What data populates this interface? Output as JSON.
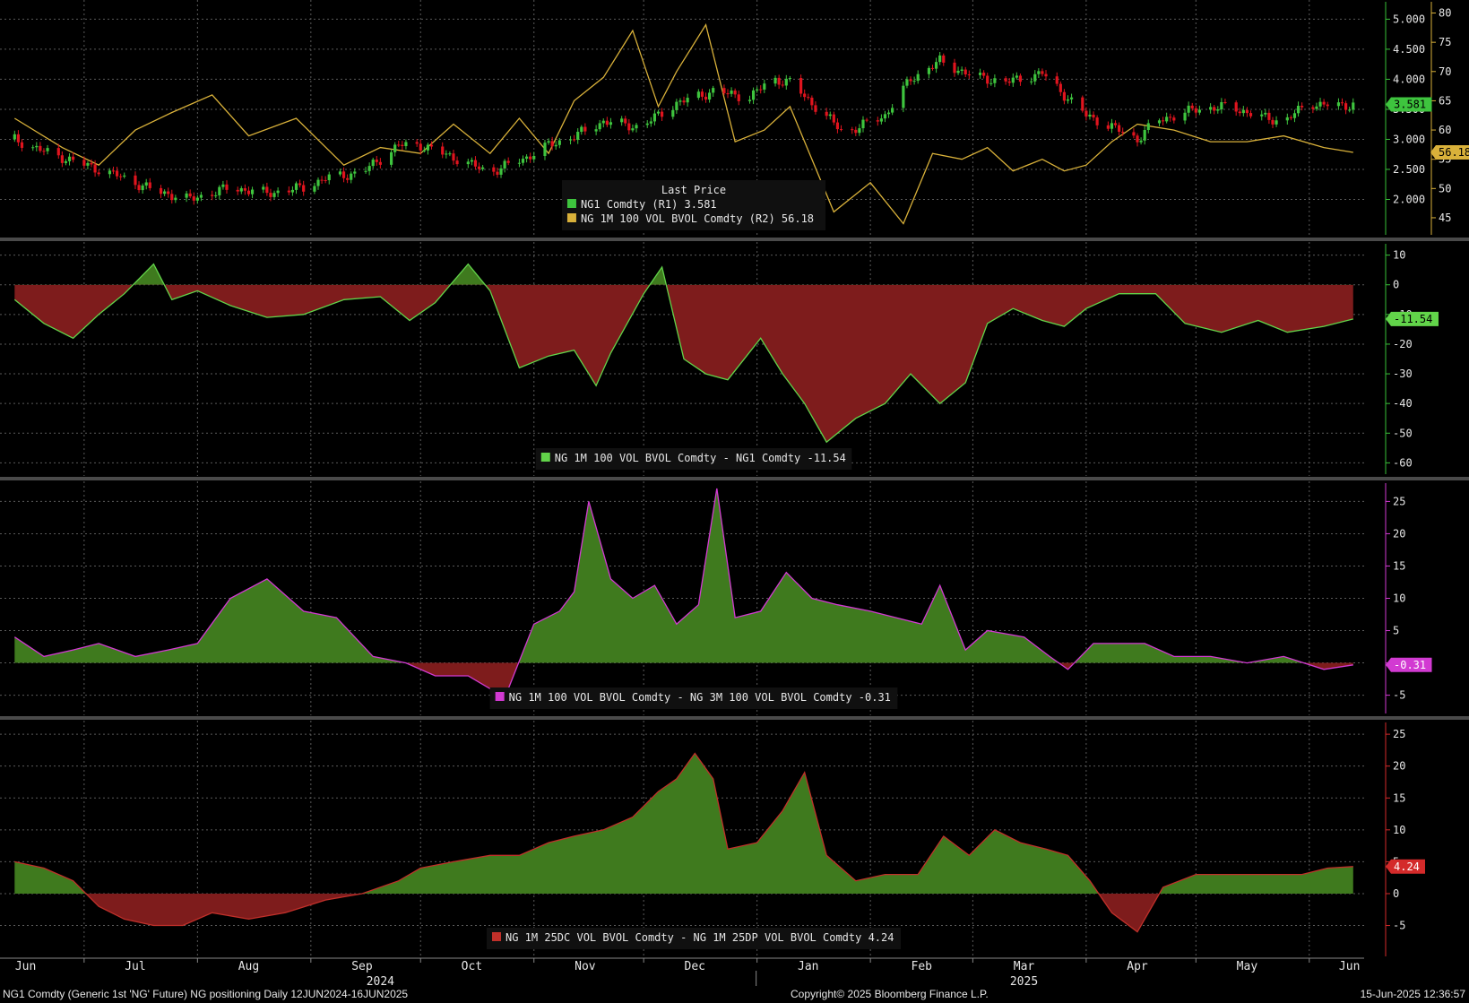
{
  "footer": {
    "left": "NG1 Comdty (Generic 1st 'NG' Future) NG positioning  Daily 12JUN2024-16JUN2025",
    "center": "Copyright© 2025 Bloomberg Finance L.P.",
    "right": "15-Jun-2025 12:36:57"
  },
  "colors": {
    "background": "#000000",
    "grid": "#5a5a5a",
    "candle_up": "#3ec43e",
    "candle_down": "#e0141e",
    "vol_line": "#d9b13a",
    "area_green": "#3f7a1e",
    "area_red": "#7e1c1c",
    "panel2_line": "#62d44a",
    "panel3_line": "#d23ad2",
    "panel4_line": "#c0302a",
    "axis_panel1": "#39c139",
    "axis_panel2": "#39c139",
    "axis_panel3": "#d23ad2",
    "axis_panel4": "#d42a2a"
  },
  "chart_data": [
    {
      "type": "line",
      "panel": "price",
      "legend_title": "Last Price",
      "legend_placement": "bottom-center",
      "grid": true,
      "series": [
        {
          "name": "NG1 Comdty  (R1)",
          "value_label": "3.581",
          "axis": "R1",
          "style": "candlestick",
          "x": [
            "2024-06-12",
            "2024-06-20",
            "2024-06-30",
            "2024-07-10",
            "2024-07-20",
            "2024-07-30",
            "2024-08-10",
            "2024-08-20",
            "2024-08-30",
            "2024-09-05",
            "2024-09-15",
            "2024-09-25",
            "2024-10-01",
            "2024-10-10",
            "2024-10-20",
            "2024-10-30",
            "2024-11-05",
            "2024-11-12",
            "2024-11-20",
            "2024-11-30",
            "2024-12-05",
            "2024-12-10",
            "2024-12-20",
            "2024-12-30",
            "2025-01-05",
            "2025-01-10",
            "2025-01-16",
            "2025-01-25",
            "2025-02-05",
            "2025-02-12",
            "2025-02-20",
            "2025-03-01",
            "2025-03-10",
            "2025-03-20",
            "2025-03-25",
            "2025-04-01",
            "2025-04-10",
            "2025-04-15",
            "2025-04-20",
            "2025-05-01",
            "2025-05-10",
            "2025-05-20",
            "2025-05-25",
            "2025-06-01",
            "2025-06-10",
            "2025-06-13"
          ],
          "y": [
            3.0,
            2.8,
            2.6,
            2.4,
            2.15,
            2.0,
            2.2,
            2.1,
            2.2,
            2.35,
            2.45,
            2.9,
            2.9,
            2.7,
            2.45,
            2.7,
            2.9,
            3.05,
            3.3,
            3.2,
            3.4,
            3.6,
            3.8,
            3.7,
            4.0,
            3.95,
            3.6,
            3.1,
            3.4,
            4.0,
            4.3,
            4.05,
            3.95,
            4.1,
            3.8,
            3.4,
            3.15,
            3.0,
            3.3,
            3.5,
            3.55,
            3.35,
            3.3,
            3.6,
            3.55,
            3.581
          ]
        },
        {
          "name": "NG 1M 100 VOL BVOL Comdty  (R2)",
          "value_label": "56.18",
          "axis": "R2",
          "x": [
            "2024-06-12",
            "2024-06-25",
            "2024-07-05",
            "2024-07-15",
            "2024-07-25",
            "2024-08-05",
            "2024-08-15",
            "2024-08-28",
            "2024-09-10",
            "2024-09-20",
            "2024-10-01",
            "2024-10-10",
            "2024-10-20",
            "2024-10-28",
            "2024-11-05",
            "2024-11-12",
            "2024-11-20",
            "2024-11-28",
            "2024-12-05",
            "2024-12-10",
            "2024-12-18",
            "2024-12-26",
            "2025-01-03",
            "2025-01-10",
            "2025-01-16",
            "2025-01-22",
            "2025-02-01",
            "2025-02-10",
            "2025-02-18",
            "2025-02-26",
            "2025-03-05",
            "2025-03-12",
            "2025-03-20",
            "2025-03-26",
            "2025-04-01",
            "2025-04-08",
            "2025-04-15",
            "2025-04-25",
            "2025-05-05",
            "2025-05-15",
            "2025-05-25",
            "2025-06-05",
            "2025-06-13"
          ],
          "y": [
            62,
            57,
            54,
            60,
            63,
            66,
            59,
            62,
            54,
            57,
            56,
            61,
            56,
            62,
            56,
            65,
            69,
            77,
            64,
            70,
            78,
            58,
            60,
            64,
            55,
            46,
            51,
            44,
            56,
            55,
            57,
            53,
            55,
            53,
            54,
            58,
            61,
            60,
            58,
            58,
            59,
            57,
            56.18
          ]
        }
      ],
      "R1": {
        "ylim": [
          1.5,
          5.2
        ],
        "ticks": [
          "2.000",
          "2.500",
          "3.000",
          "3.500",
          "4.000",
          "4.500",
          "5.000"
        ]
      },
      "R2": {
        "ylim": [
          43,
          81
        ],
        "ticks": [
          "45",
          "50",
          "55",
          "60",
          "65",
          "70",
          "75",
          "80"
        ]
      }
    },
    {
      "type": "area",
      "panel": "spread1",
      "grid": true,
      "legend_placement": "bottom-center",
      "series": [
        {
          "name": "NG 1M 100 VOL BVOL Comdty - NG1 Comdty",
          "value_label": "-11.54",
          "x": [
            "2024-06-12",
            "2024-06-20",
            "2024-06-28",
            "2024-07-05",
            "2024-07-12",
            "2024-07-20",
            "2024-07-25",
            "2024-08-01",
            "2024-08-10",
            "2024-08-20",
            "2024-08-30",
            "2024-09-10",
            "2024-09-20",
            "2024-09-28",
            "2024-10-05",
            "2024-10-14",
            "2024-10-20",
            "2024-10-28",
            "2024-11-05",
            "2024-11-12",
            "2024-11-18",
            "2024-11-22",
            "2024-12-01",
            "2024-12-06",
            "2024-12-12",
            "2024-12-18",
            "2024-12-24",
            "2025-01-02",
            "2025-01-08",
            "2025-01-14",
            "2025-01-20",
            "2025-01-28",
            "2025-02-05",
            "2025-02-12",
            "2025-02-20",
            "2025-02-27",
            "2025-03-05",
            "2025-03-12",
            "2025-03-20",
            "2025-03-26",
            "2025-04-01",
            "2025-04-10",
            "2025-04-20",
            "2025-04-28",
            "2025-05-08",
            "2025-05-18",
            "2025-05-26",
            "2025-06-05",
            "2025-06-13"
          ],
          "y": [
            -5,
            -13,
            -18,
            -10,
            -3,
            7,
            -5,
            -2,
            -7,
            -11,
            -10,
            -5,
            -4,
            -12,
            -6,
            7,
            -2,
            -28,
            -24,
            -22,
            -34,
            -23,
            -3,
            6,
            -25,
            -30,
            -32,
            -18,
            -30,
            -40,
            -53,
            -45,
            -40,
            -30,
            -40,
            -33,
            -13,
            -8,
            -12,
            -14,
            -8,
            -3,
            -3,
            -13,
            -16,
            -12,
            -16,
            -14,
            -11.54
          ]
        }
      ],
      "ylim": [
        -62,
        12
      ],
      "ticks": [
        "-60",
        "-50",
        "-40",
        "-30",
        "-20",
        "-10",
        "0",
        "10"
      ]
    },
    {
      "type": "area",
      "panel": "spread2",
      "grid": true,
      "legend_placement": "bottom-center",
      "series": [
        {
          "name": "NG 1M 100 VOL BVOL Comdty - NG 3M 100 VOL BVOL Comdty",
          "value_label": "-0.31",
          "x": [
            "2024-06-12",
            "2024-06-20",
            "2024-06-28",
            "2024-07-05",
            "2024-07-15",
            "2024-07-24",
            "2024-08-01",
            "2024-08-10",
            "2024-08-20",
            "2024-08-30",
            "2024-09-08",
            "2024-09-18",
            "2024-09-27",
            "2024-10-05",
            "2024-10-14",
            "2024-10-20",
            "2024-10-25",
            "2024-11-01",
            "2024-11-08",
            "2024-11-12",
            "2024-11-16",
            "2024-11-22",
            "2024-11-28",
            "2024-12-04",
            "2024-12-10",
            "2024-12-16",
            "2024-12-21",
            "2024-12-26",
            "2025-01-02",
            "2025-01-09",
            "2025-01-16",
            "2025-01-23",
            "2025-02-01",
            "2025-02-08",
            "2025-02-15",
            "2025-02-20",
            "2025-02-27",
            "2025-03-05",
            "2025-03-15",
            "2025-03-22",
            "2025-03-27",
            "2025-04-03",
            "2025-04-10",
            "2025-04-17",
            "2025-04-25",
            "2025-05-05",
            "2025-05-15",
            "2025-05-25",
            "2025-06-05",
            "2025-06-13"
          ],
          "y": [
            4,
            1,
            2,
            3,
            1,
            2,
            3,
            10,
            13,
            8,
            7,
            1,
            0,
            -2,
            -2,
            -4,
            -4,
            6,
            8,
            11,
            25,
            13,
            10,
            12,
            6,
            9,
            27,
            7,
            8,
            14,
            10,
            9,
            8,
            7,
            6,
            12,
            2,
            5,
            4,
            1,
            -1,
            3,
            3,
            3,
            1,
            1,
            0,
            1,
            -1,
            -0.31
          ]
        }
      ],
      "ylim": [
        -7,
        27
      ],
      "ticks": [
        "-5",
        "0",
        "5",
        "10",
        "15",
        "20",
        "25"
      ]
    },
    {
      "type": "area",
      "panel": "skew",
      "grid": true,
      "legend_placement": "bottom-center",
      "series": [
        {
          "name": "NG 1M 25DC VOL BVOL Comdty - NG 1M 25DP VOL BVOL Comdty",
          "value_label": "4.24",
          "x": [
            "2024-06-12",
            "2024-06-20",
            "2024-06-28",
            "2024-07-05",
            "2024-07-12",
            "2024-07-20",
            "2024-07-28",
            "2024-08-05",
            "2024-08-15",
            "2024-08-25",
            "2024-09-05",
            "2024-09-15",
            "2024-09-25",
            "2024-10-01",
            "2024-10-10",
            "2024-10-20",
            "2024-10-28",
            "2024-11-05",
            "2024-11-12",
            "2024-11-20",
            "2024-11-28",
            "2024-12-05",
            "2024-12-10",
            "2024-12-15",
            "2024-12-20",
            "2024-12-24",
            "2025-01-01",
            "2025-01-08",
            "2025-01-14",
            "2025-01-20",
            "2025-01-28",
            "2025-02-05",
            "2025-02-14",
            "2025-02-21",
            "2025-02-28",
            "2025-03-07",
            "2025-03-14",
            "2025-03-21",
            "2025-03-27",
            "2025-04-02",
            "2025-04-08",
            "2025-04-15",
            "2025-04-22",
            "2025-05-01",
            "2025-05-10",
            "2025-05-20",
            "2025-05-30",
            "2025-06-06",
            "2025-06-13"
          ],
          "y": [
            5,
            4,
            2,
            -2,
            -4,
            -5,
            -5,
            -3,
            -4,
            -3,
            -1,
            0,
            2,
            4,
            5,
            6,
            6,
            8,
            9,
            10,
            12,
            16,
            18,
            22,
            18,
            7,
            8,
            13,
            19,
            6,
            2,
            3,
            3,
            9,
            6,
            10,
            8,
            7,
            6,
            2,
            -3,
            -6,
            1,
            3,
            3,
            3,
            3,
            4,
            4.24
          ]
        }
      ],
      "ylim": [
        -9,
        26
      ],
      "ticks": [
        "-5",
        "0",
        "5",
        "10",
        "15",
        "20",
        "25"
      ]
    }
  ],
  "x_axis": {
    "range": [
      "2024-06-08",
      "2025-06-16"
    ],
    "months": [
      {
        "label": "Jun",
        "date": "2024-06-15"
      },
      {
        "label": "Jul",
        "date": "2024-07-15"
      },
      {
        "label": "Aug",
        "date": "2024-08-15"
      },
      {
        "label": "Sep",
        "date": "2024-09-15"
      },
      {
        "label": "Oct",
        "date": "2024-10-15"
      },
      {
        "label": "Nov",
        "date": "2024-11-15"
      },
      {
        "label": "Dec",
        "date": "2024-12-15"
      },
      {
        "label": "Jan",
        "date": "2025-01-15"
      },
      {
        "label": "Feb",
        "date": "2025-02-15"
      },
      {
        "label": "Mar",
        "date": "2025-03-15"
      },
      {
        "label": "Apr",
        "date": "2025-04-15"
      },
      {
        "label": "May",
        "date": "2025-05-15"
      },
      {
        "label": "Jun",
        "date": "2025-06-12"
      }
    ],
    "years": [
      {
        "label": "2024",
        "date": "2024-09-20"
      },
      {
        "label": "2025",
        "date": "2025-03-15"
      }
    ],
    "year_boundary": "2025-01-01"
  }
}
